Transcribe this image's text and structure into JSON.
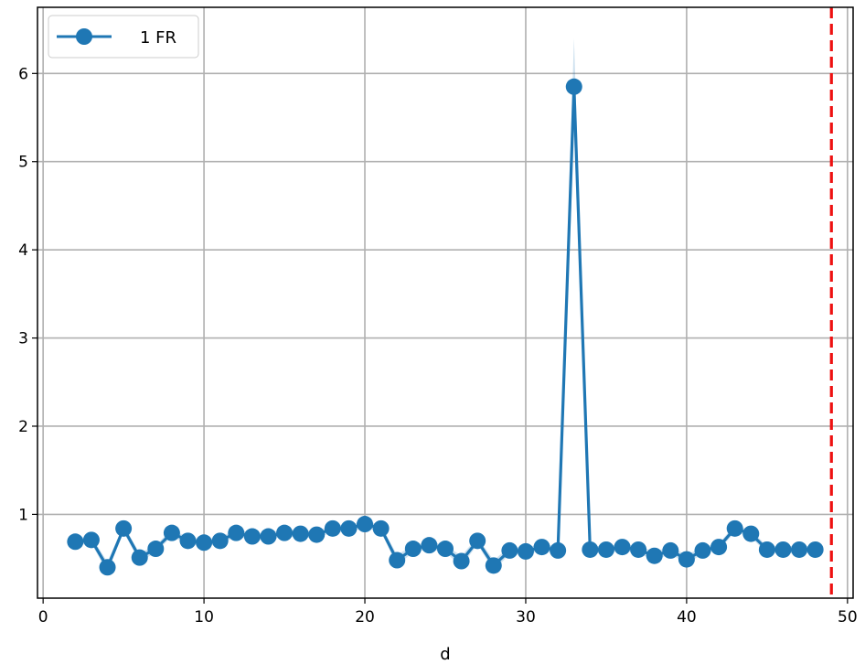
{
  "chart_data": {
    "type": "line",
    "xlabel": "d",
    "ylabel": "",
    "xlim": [
      -0.35,
      50.35
    ],
    "ylim": [
      0.05,
      6.75
    ],
    "xticks": [
      0,
      10,
      20,
      30,
      40,
      50
    ],
    "yticks": [
      1,
      2,
      3,
      4,
      5,
      6
    ],
    "grid": true,
    "legend_position": "top-left",
    "series": [
      {
        "name": "1 FR",
        "color": "#1f77b4",
        "marker": "circle",
        "x": [
          2,
          3,
          4,
          5,
          6,
          7,
          8,
          9,
          10,
          11,
          12,
          13,
          14,
          15,
          16,
          17,
          18,
          19,
          20,
          21,
          22,
          23,
          24,
          25,
          26,
          27,
          28,
          29,
          30,
          31,
          32,
          33,
          34,
          35,
          36,
          37,
          38,
          39,
          40,
          41,
          42,
          43,
          44,
          45,
          46,
          47,
          48
        ],
        "y": [
          0.69,
          0.71,
          0.4,
          0.84,
          0.51,
          0.61,
          0.79,
          0.7,
          0.68,
          0.7,
          0.79,
          0.75,
          0.75,
          0.79,
          0.78,
          0.77,
          0.84,
          0.84,
          0.89,
          0.84,
          0.48,
          0.61,
          0.65,
          0.61,
          0.47,
          0.7,
          0.42,
          0.59,
          0.58,
          0.63,
          0.59,
          5.85,
          0.6,
          0.6,
          0.63,
          0.6,
          0.53,
          0.59,
          0.49,
          0.59,
          0.63,
          0.84,
          0.78,
          0.6,
          0.6,
          0.6,
          0.6
        ],
        "band_upper": [
          0.73,
          0.75,
          0.46,
          0.88,
          0.56,
          0.65,
          0.83,
          0.74,
          0.72,
          0.74,
          0.83,
          0.79,
          0.79,
          0.83,
          0.82,
          0.81,
          0.88,
          0.88,
          0.93,
          0.88,
          0.54,
          0.65,
          0.69,
          0.65,
          0.53,
          0.74,
          0.48,
          0.63,
          0.62,
          0.67,
          0.63,
          6.4,
          0.64,
          0.64,
          0.67,
          0.64,
          0.58,
          0.63,
          0.54,
          0.63,
          0.67,
          0.88,
          0.82,
          0.64,
          0.64,
          0.64,
          0.64
        ],
        "band_lower": [
          0.65,
          0.67,
          0.34,
          0.8,
          0.46,
          0.57,
          0.75,
          0.66,
          0.64,
          0.66,
          0.75,
          0.71,
          0.71,
          0.75,
          0.74,
          0.73,
          0.8,
          0.8,
          0.85,
          0.8,
          0.42,
          0.57,
          0.61,
          0.57,
          0.41,
          0.66,
          0.36,
          0.55,
          0.54,
          0.59,
          0.55,
          5.3,
          0.56,
          0.56,
          0.59,
          0.56,
          0.48,
          0.55,
          0.44,
          0.55,
          0.59,
          0.8,
          0.74,
          0.56,
          0.56,
          0.56,
          0.56
        ]
      }
    ],
    "reference_line": {
      "axis": "x",
      "value": 49,
      "color": "#ee1111",
      "style": "dashed"
    }
  }
}
